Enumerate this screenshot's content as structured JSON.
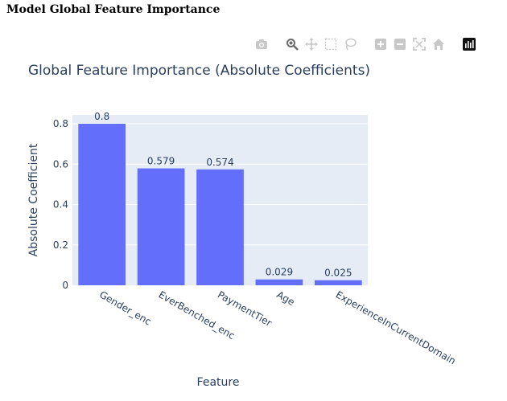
{
  "page": {
    "heading": "Model Global Feature Importance"
  },
  "modebar": {
    "buttons": [
      {
        "name": "camera-icon",
        "label": "Download plot as a png"
      },
      {
        "name": "zoom-icon",
        "label": "Zoom"
      },
      {
        "name": "pan-icon",
        "label": "Pan"
      },
      {
        "name": "box-select-icon",
        "label": "Box Select"
      },
      {
        "name": "lasso-select-icon",
        "label": "Lasso Select"
      },
      {
        "name": "zoom-in-icon",
        "label": "Zoom in"
      },
      {
        "name": "zoom-out-icon",
        "label": "Zoom out"
      },
      {
        "name": "autoscale-icon",
        "label": "Autoscale"
      },
      {
        "name": "reset-axes-icon",
        "label": "Reset axes"
      },
      {
        "name": "plotly-logo-icon",
        "label": "Produced with Plotly"
      }
    ]
  },
  "colors": {
    "bar": "#636efa",
    "plot_bg": "#e5ecf6",
    "text": "#2a3f5f",
    "grid": "#ffffff"
  },
  "chart_data": {
    "type": "bar",
    "title": "Global Feature Importance (Absolute Coefficients)",
    "xlabel": "Feature",
    "ylabel": "Absolute Coefficient",
    "categories": [
      "Gender_enc",
      "EverBenched_enc",
      "PaymentTier",
      "Age",
      "ExperienceInCurrentDomain"
    ],
    "values": [
      0.8,
      0.579,
      0.574,
      0.029,
      0.025
    ],
    "value_labels": [
      "0.8",
      "0.579",
      "0.574",
      "0.029",
      "0.025"
    ],
    "yticks": [
      0,
      0.2,
      0.4,
      0.6,
      0.8
    ],
    "ytick_labels": [
      "0",
      "0.2",
      "0.4",
      "0.6",
      "0.8"
    ],
    "ylim": [
      0,
      0.8
    ],
    "grid": true,
    "legend": "none"
  }
}
